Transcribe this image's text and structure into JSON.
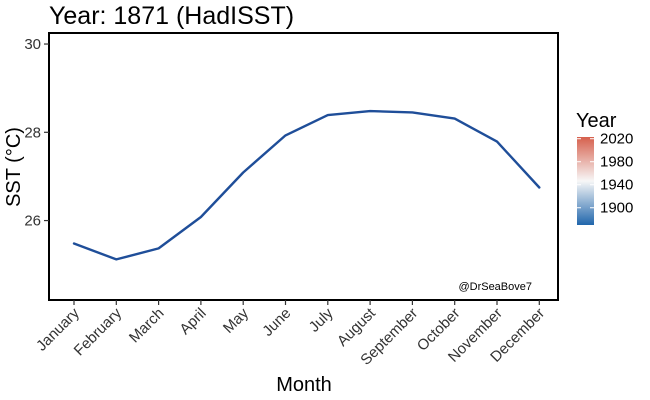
{
  "chart_data": {
    "type": "line",
    "title": "Year: 1871 (HadISST)",
    "xlabel": "Month",
    "ylabel": "SST (°C)",
    "categories": [
      "January",
      "February",
      "March",
      "April",
      "May",
      "June",
      "July",
      "August",
      "September",
      "October",
      "November",
      "December"
    ],
    "series": [
      {
        "values": [
          25.48,
          25.12,
          25.37,
          26.08,
          27.09,
          27.93,
          28.39,
          28.48,
          28.45,
          28.31,
          27.79,
          26.75
        ]
      }
    ],
    "ylim": [
      24.2,
      30.25
    ],
    "yticks": [
      26,
      28,
      30
    ],
    "grid": false,
    "legend": {
      "title": "Year",
      "type": "colorbar",
      "placement": "right",
      "range": [
        1870,
        2023
      ],
      "ticks": [
        2020,
        1980,
        1940,
        1900
      ],
      "colors": [
        "#2166ac",
        "#f7f7f7",
        "#d6604d"
      ]
    },
    "line_color": "#1f4e99",
    "annotation": "@DrSeaBove7"
  }
}
